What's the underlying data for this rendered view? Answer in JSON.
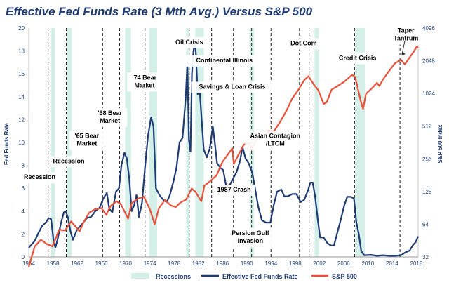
{
  "chart_data": {
    "type": "line",
    "title": "Effective Fed Funds Rate (3 Mth Avg.) Versus S&P 500",
    "ylabel_left": "Fed Funds Rate",
    "ylabel_right": "S&P 500 Index",
    "x_ticks": [
      "1954",
      "1958",
      "1962",
      "1966",
      "1970",
      "1974",
      "1978",
      "1982",
      "1986",
      "1990",
      "1994",
      "1998",
      "2002",
      "2006",
      "2010",
      "2014",
      "2018"
    ],
    "y_left_ticks": [
      "0",
      "2",
      "4",
      "6",
      "8",
      "10",
      "12",
      "14",
      "16",
      "18",
      "20"
    ],
    "y_left_range": [
      0,
      20
    ],
    "y_right_ticks": [
      "32",
      "64",
      "128",
      "256",
      "512",
      "1024",
      "2048",
      "4096"
    ],
    "y_right_range": [
      32,
      4096
    ],
    "y_right_scale": "log2",
    "x_range": [
      1954,
      2018.3
    ],
    "grid": false,
    "legend_position": "bottom",
    "legend": {
      "recessions": "Recessions",
      "fed": "Effective Fed Funds Rate",
      "sp": "S&P 500"
    },
    "colors": {
      "fed": "#1f3b73",
      "sp": "#e8503a",
      "recession": "#d4efe8",
      "title": "#1f3b73"
    },
    "recessions": [
      [
        1957.6,
        1958.3
      ],
      [
        1960.3,
        1961.1
      ],
      [
        1969.9,
        1970.9
      ],
      [
        1973.9,
        1975.2
      ],
      [
        1980.0,
        1980.5
      ],
      [
        1981.5,
        1982.9
      ],
      [
        1990.5,
        1991.2
      ],
      [
        2001.2,
        2001.9
      ],
      [
        2007.9,
        2009.5
      ]
    ],
    "dashed_event_years": [
      1957.2,
      1960.2,
      1966.2,
      1969.0,
      1973.2,
      1980.5,
      1984.2,
      1987.8,
      1990.8,
      1994.0,
      1998.7,
      2000.3,
      2007.8,
      2015.3
    ],
    "annotations": [
      {
        "id": "recession-1",
        "lines": [
          "Recession"
        ],
        "x": 1955.8,
        "y": 6.8
      },
      {
        "id": "recession-2",
        "lines": [
          "Recession"
        ],
        "x": 1960.6,
        "y": 8.2
      },
      {
        "id": "bear-65",
        "lines": [
          "'65 Bear",
          "Market"
        ],
        "x": 1963.6,
        "y": 10.4
      },
      {
        "id": "bear-68",
        "lines": [
          "'68 Bear",
          "Market"
        ],
        "x": 1967.4,
        "y": 12.4
      },
      {
        "id": "bear-74",
        "lines": [
          "'74 Bear",
          "Market"
        ],
        "x": 1973.1,
        "y": 15.5
      },
      {
        "id": "oil-crisis",
        "lines": [
          "Oil Crisis"
        ],
        "x": 1980.5,
        "y": 18.6
      },
      {
        "id": "continental-illinois",
        "lines": [
          "Continental Illinois"
        ],
        "x": 1986.3,
        "y": 17.0
      },
      {
        "id": "savings-loan",
        "lines": [
          "Savings & Loan Crisis"
        ],
        "x": 1987.6,
        "y": 14.7
      },
      {
        "id": "asian-contagion",
        "lines": [
          "Asian Contagion",
          "/LTCM"
        ],
        "x": 1994.7,
        "y": 10.4
      },
      {
        "id": "crash-1987",
        "lines": [
          "1987 Crash"
        ],
        "x": 1987.9,
        "y": 5.7
      },
      {
        "id": "gulf-invasion",
        "lines": [
          "Persion Gulf",
          "Invasion"
        ],
        "x": 1990.6,
        "y": 1.9
      },
      {
        "id": "dotcom",
        "lines": [
          "Dot.Com"
        ],
        "x": 1999.4,
        "y": 18.5
      },
      {
        "id": "credit-crisis",
        "lines": [
          "Credit Crisis"
        ],
        "x": 2008.3,
        "y": 17.2
      },
      {
        "id": "taper-tantrum",
        "lines": [
          "Taper",
          "Tantrum"
        ],
        "x": 2016.3,
        "y": 19.6
      }
    ],
    "series": [
      {
        "name": "Effective Fed Funds Rate",
        "axis": "left",
        "points": [
          [
            1954,
            0.8
          ],
          [
            1954.5,
            1.1
          ],
          [
            1955,
            1.4
          ],
          [
            1955.6,
            2.1
          ],
          [
            1956.2,
            2.7
          ],
          [
            1956.8,
            3.0
          ],
          [
            1957.3,
            3.4
          ],
          [
            1957.7,
            3.3
          ],
          [
            1958.1,
            1.4
          ],
          [
            1958.4,
            0.8
          ],
          [
            1958.8,
            1.6
          ],
          [
            1959.3,
            2.9
          ],
          [
            1959.8,
            3.9
          ],
          [
            1960.1,
            4.0
          ],
          [
            1960.5,
            3.4
          ],
          [
            1960.9,
            2.2
          ],
          [
            1961.3,
            1.5
          ],
          [
            1961.9,
            2.3
          ],
          [
            1962.5,
            2.7
          ],
          [
            1963.0,
            3.0
          ],
          [
            1963.6,
            3.4
          ],
          [
            1964.3,
            3.5
          ],
          [
            1965.0,
            4.0
          ],
          [
            1965.7,
            4.3
          ],
          [
            1966.3,
            5.1
          ],
          [
            1966.9,
            5.6
          ],
          [
            1967.3,
            4.2
          ],
          [
            1967.8,
            3.9
          ],
          [
            1968.4,
            5.7
          ],
          [
            1968.9,
            6.0
          ],
          [
            1969.3,
            8.0
          ],
          [
            1969.8,
            9.1
          ],
          [
            1970.2,
            8.6
          ],
          [
            1970.6,
            6.8
          ],
          [
            1971.0,
            4.0
          ],
          [
            1971.4,
            4.5
          ],
          [
            1971.8,
            5.4
          ],
          [
            1972.2,
            3.5
          ],
          [
            1972.7,
            4.7
          ],
          [
            1973.2,
            7.8
          ],
          [
            1973.7,
            10.6
          ],
          [
            1974.2,
            12.2
          ],
          [
            1974.6,
            11.4
          ],
          [
            1975.0,
            6.0
          ],
          [
            1975.6,
            5.4
          ],
          [
            1976.2,
            5.0
          ],
          [
            1976.8,
            4.8
          ],
          [
            1977.3,
            5.4
          ],
          [
            1977.9,
            6.6
          ],
          [
            1978.4,
            7.8
          ],
          [
            1978.9,
            10.0
          ],
          [
            1979.4,
            10.4
          ],
          [
            1979.9,
            13.8
          ],
          [
            1980.2,
            17.0
          ],
          [
            1980.45,
            10.2
          ],
          [
            1980.7,
            9.2
          ],
          [
            1980.95,
            16.0
          ],
          [
            1981.2,
            18.0
          ],
          [
            1981.4,
            18.8
          ],
          [
            1981.6,
            17.8
          ],
          [
            1981.9,
            14.2
          ],
          [
            1982.2,
            14.8
          ],
          [
            1982.6,
            11.6
          ],
          [
            1982.9,
            9.4
          ],
          [
            1983.4,
            8.7
          ],
          [
            1983.9,
            9.5
          ],
          [
            1984.4,
            11.4
          ],
          [
            1984.7,
            10.1
          ],
          [
            1985.1,
            8.2
          ],
          [
            1985.6,
            7.8
          ],
          [
            1986.1,
            7.6
          ],
          [
            1986.6,
            6.2
          ],
          [
            1987.2,
            6.3
          ],
          [
            1987.7,
            6.8
          ],
          [
            1988.3,
            7.4
          ],
          [
            1988.9,
            8.4
          ],
          [
            1989.3,
            9.6
          ],
          [
            1989.8,
            8.6
          ],
          [
            1990.3,
            8.2
          ],
          [
            1990.9,
            7.4
          ],
          [
            1991.4,
            5.9
          ],
          [
            1991.9,
            4.4
          ],
          [
            1992.5,
            3.2
          ],
          [
            1993.2,
            3.0
          ],
          [
            1993.9,
            3.0
          ],
          [
            1994.4,
            4.4
          ],
          [
            1995.0,
            5.7
          ],
          [
            1995.7,
            5.9
          ],
          [
            1996.2,
            5.3
          ],
          [
            1996.8,
            5.3
          ],
          [
            1997.5,
            5.5
          ],
          [
            1998.2,
            5.5
          ],
          [
            1998.9,
            4.8
          ],
          [
            1999.5,
            5.0
          ],
          [
            2000.1,
            5.8
          ],
          [
            2000.5,
            6.5
          ],
          [
            2000.9,
            6.5
          ],
          [
            2001.3,
            5.2
          ],
          [
            2001.7,
            3.4
          ],
          [
            2002.1,
            1.7
          ],
          [
            2002.7,
            1.7
          ],
          [
            2003.3,
            1.2
          ],
          [
            2003.9,
            1.0
          ],
          [
            2004.4,
            1.0
          ],
          [
            2004.9,
            2.0
          ],
          [
            2005.5,
            3.2
          ],
          [
            2006.1,
            4.5
          ],
          [
            2006.6,
            5.25
          ],
          [
            2007.2,
            5.25
          ],
          [
            2007.7,
            5.1
          ],
          [
            2008.1,
            3.0
          ],
          [
            2008.5,
            2.0
          ],
          [
            2008.9,
            0.5
          ],
          [
            2009.4,
            0.15
          ],
          [
            2010.5,
            0.18
          ],
          [
            2011.5,
            0.1
          ],
          [
            2012.5,
            0.15
          ],
          [
            2013.5,
            0.1
          ],
          [
            2014.5,
            0.1
          ],
          [
            2015.5,
            0.15
          ],
          [
            2016.2,
            0.4
          ],
          [
            2016.9,
            0.55
          ],
          [
            2017.4,
            1.0
          ],
          [
            2017.9,
            1.3
          ],
          [
            2018.3,
            1.8
          ]
        ]
      },
      {
        "name": "S&P 500",
        "axis": "right",
        "points": [
          [
            1954,
            26
          ],
          [
            1955,
            40
          ],
          [
            1956,
            46
          ],
          [
            1957,
            42
          ],
          [
            1957.9,
            40
          ],
          [
            1958.5,
            48
          ],
          [
            1959,
            57
          ],
          [
            1960,
            56
          ],
          [
            1961,
            68
          ],
          [
            1962.4,
            55
          ],
          [
            1963,
            66
          ],
          [
            1964,
            82
          ],
          [
            1965,
            88
          ],
          [
            1966,
            90
          ],
          [
            1966.8,
            78
          ],
          [
            1967.5,
            94
          ],
          [
            1968.5,
            104
          ],
          [
            1969.2,
            98
          ],
          [
            1970.4,
            72
          ],
          [
            1971,
            100
          ],
          [
            1972,
            110
          ],
          [
            1973,
            115
          ],
          [
            1974,
            88
          ],
          [
            1974.8,
            64
          ],
          [
            1975.5,
            90
          ],
          [
            1976.5,
            107
          ],
          [
            1977.5,
            95
          ],
          [
            1978.3,
            92
          ],
          [
            1979,
            101
          ],
          [
            1980,
            108
          ],
          [
            1980.9,
            136
          ],
          [
            1981.5,
            128
          ],
          [
            1982.5,
            104
          ],
          [
            1983,
            145
          ],
          [
            1984,
            160
          ],
          [
            1985,
            180
          ],
          [
            1986,
            240
          ],
          [
            1987.6,
            320
          ],
          [
            1987.85,
            230
          ],
          [
            1988.5,
            270
          ],
          [
            1989.5,
            345
          ],
          [
            1990.4,
            360
          ],
          [
            1990.8,
            310
          ],
          [
            1991.5,
            375
          ],
          [
            1992.5,
            415
          ],
          [
            1993.5,
            460
          ],
          [
            1994.5,
            460
          ],
          [
            1995.5,
            560
          ],
          [
            1996.5,
            700
          ],
          [
            1997.5,
            920
          ],
          [
            1998.5,
            1100
          ],
          [
            1999.5,
            1360
          ],
          [
            2000.2,
            1480
          ],
          [
            2001,
            1250
          ],
          [
            2001.8,
            1100
          ],
          [
            2002.7,
            820
          ],
          [
            2003.2,
            850
          ],
          [
            2004,
            1110
          ],
          [
            2005,
            1200
          ],
          [
            2006,
            1300
          ],
          [
            2007.4,
            1520
          ],
          [
            2007.9,
            1450
          ],
          [
            2008.8,
            880
          ],
          [
            2009.2,
            740
          ],
          [
            2009.7,
            1020
          ],
          [
            2010.5,
            1120
          ],
          [
            2011.5,
            1280
          ],
          [
            2011.9,
            1200
          ],
          [
            2012.5,
            1380
          ],
          [
            2013.5,
            1650
          ],
          [
            2014.5,
            1950
          ],
          [
            2015.5,
            2080
          ],
          [
            2016.1,
            1900
          ],
          [
            2016.9,
            2200
          ],
          [
            2017.5,
            2450
          ],
          [
            2018.1,
            2780
          ],
          [
            2018.3,
            2700
          ]
        ]
      }
    ]
  }
}
